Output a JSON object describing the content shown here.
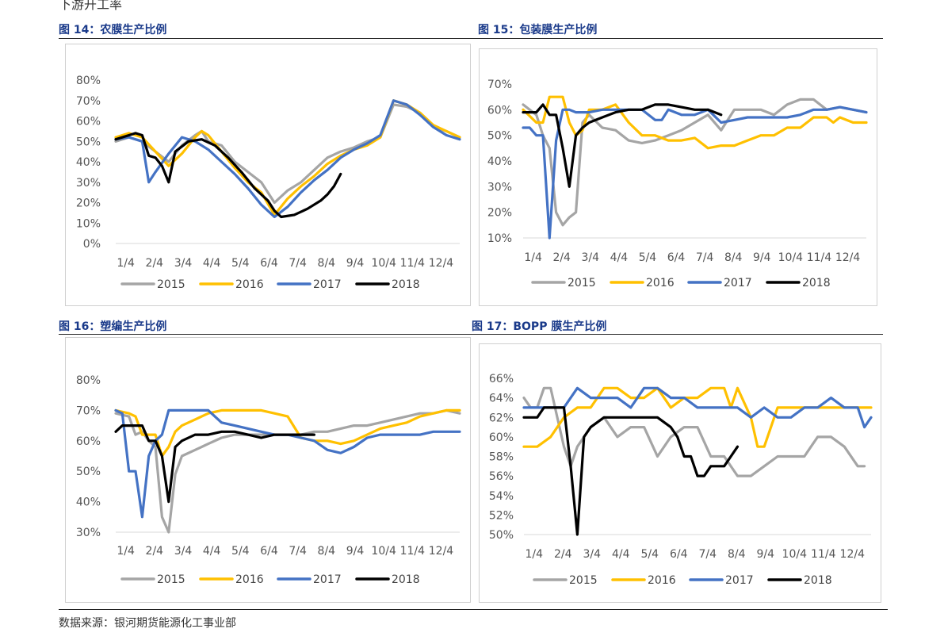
{
  "header": {
    "text": "下游开工率"
  },
  "footer": {
    "source": "数据来源：银河期货能源化工事业部"
  },
  "colors": {
    "2015": "#a5a5a5",
    "2016": "#ffc000",
    "2017": "#4472c4",
    "2018": "#000000",
    "title": "#1a3a8a"
  },
  "chart_data": [
    {
      "id": "fig14",
      "figure_label": "图 14：农膜生产比例",
      "type": "line",
      "y_unit": "%",
      "ylim": [
        0,
        80
      ],
      "yticks": [
        0,
        10,
        20,
        30,
        40,
        50,
        60,
        70,
        80
      ],
      "xlim": [
        0,
        52
      ],
      "categories": [
        "1/4",
        "2/4",
        "3/4",
        "4/4",
        "5/4",
        "6/4",
        "7/4",
        "8/4",
        "9/4",
        "10/4",
        "11/4",
        "12/4"
      ],
      "legend_position": "bottom",
      "grid": false,
      "series": [
        {
          "name": "2015",
          "x": [
            0,
            2,
            4,
            6,
            8,
            10,
            12,
            13,
            14,
            16,
            18,
            20,
            22,
            24,
            26,
            28,
            30,
            32,
            34,
            36,
            38,
            40,
            42,
            44,
            46,
            48,
            50,
            52
          ],
          "y": [
            50,
            52,
            50,
            45,
            40,
            48,
            53,
            55,
            50,
            48,
            40,
            35,
            30,
            20,
            26,
            30,
            36,
            42,
            45,
            47,
            50,
            52,
            68,
            67,
            64,
            57,
            55,
            52
          ]
        },
        {
          "name": "2016",
          "x": [
            0,
            2,
            4,
            6,
            8,
            10,
            12,
            13,
            14,
            16,
            18,
            20,
            22,
            24,
            26,
            28,
            30,
            32,
            34,
            36,
            38,
            40,
            42,
            44,
            46,
            48,
            50,
            52
          ],
          "y": [
            52,
            54,
            52,
            45,
            38,
            44,
            52,
            55,
            53,
            45,
            37,
            30,
            25,
            14,
            22,
            28,
            33,
            39,
            43,
            46,
            48,
            52,
            70,
            68,
            64,
            58,
            55,
            52
          ]
        },
        {
          "name": "2017",
          "x": [
            0,
            2,
            4,
            5,
            6,
            8,
            10,
            12,
            14,
            16,
            18,
            20,
            22,
            24,
            26,
            28,
            30,
            32,
            34,
            36,
            38,
            40,
            42,
            44,
            46,
            48,
            50,
            52
          ],
          "y": [
            51,
            52,
            50,
            30,
            35,
            44,
            52,
            50,
            46,
            40,
            34,
            27,
            19,
            13,
            18,
            25,
            31,
            36,
            42,
            46,
            49,
            53,
            70,
            68,
            63,
            57,
            53,
            51
          ]
        },
        {
          "name": "2018",
          "x": [
            0,
            2,
            3,
            4,
            5,
            6,
            7,
            8,
            9,
            11,
            13,
            15,
            17,
            19,
            21,
            23,
            24,
            25,
            27,
            29,
            31,
            32,
            33,
            34
          ],
          "y": [
            51,
            53,
            54,
            53,
            43,
            42,
            38,
            30,
            45,
            50,
            51,
            48,
            42,
            35,
            27,
            21,
            16,
            13,
            14,
            17,
            21,
            24,
            28,
            34
          ]
        }
      ]
    },
    {
      "id": "fig15",
      "figure_label": "图 15：包装膜生产比例",
      "type": "line",
      "y_unit": "%",
      "ylim": [
        10,
        70
      ],
      "yticks": [
        10,
        20,
        30,
        40,
        50,
        60,
        70
      ],
      "xlim": [
        0,
        52
      ],
      "categories": [
        "1/4",
        "2/4",
        "3/4",
        "4/4",
        "5/4",
        "6/4",
        "7/4",
        "8/4",
        "9/4",
        "10/4",
        "11/4",
        "12/4"
      ],
      "legend_position": "bottom",
      "grid": false,
      "series": [
        {
          "name": "2015",
          "x": [
            0,
            2,
            3,
            4,
            5,
            6,
            7,
            8,
            9,
            10,
            12,
            14,
            16,
            18,
            20,
            22,
            24,
            26,
            28,
            30,
            32,
            34,
            36,
            38,
            40,
            42,
            44,
            46,
            48,
            50,
            52
          ],
          "y": [
            62,
            58,
            50,
            45,
            20,
            15,
            18,
            20,
            55,
            58,
            53,
            52,
            48,
            47,
            48,
            50,
            52,
            55,
            58,
            52,
            60,
            60,
            60,
            58,
            62,
            64,
            64,
            60,
            61,
            60,
            59
          ]
        },
        {
          "name": "2016",
          "x": [
            0,
            2,
            3,
            4,
            6,
            7,
            8,
            9,
            10,
            12,
            14,
            16,
            18,
            20,
            22,
            24,
            26,
            28,
            30,
            32,
            34,
            36,
            38,
            40,
            42,
            44,
            46,
            47,
            48,
            50,
            52
          ],
          "y": [
            60,
            55,
            55,
            65,
            65,
            55,
            50,
            52,
            60,
            60,
            62,
            55,
            50,
            50,
            48,
            48,
            49,
            45,
            46,
            46,
            48,
            50,
            50,
            53,
            53,
            57,
            57,
            55,
            57,
            55,
            55
          ]
        },
        {
          "name": "2017",
          "x": [
            0,
            1,
            2,
            3,
            4,
            5,
            6,
            7,
            8,
            10,
            12,
            14,
            16,
            18,
            20,
            21,
            22,
            24,
            26,
            28,
            30,
            32,
            34,
            36,
            38,
            40,
            42,
            44,
            46,
            48,
            50,
            52
          ],
          "y": [
            53,
            53,
            50,
            50,
            10,
            48,
            60,
            60,
            59,
            59,
            60,
            60,
            60,
            60,
            56,
            56,
            60,
            58,
            58,
            60,
            55,
            56,
            57,
            57,
            57,
            57,
            58,
            60,
            60,
            61,
            60,
            59
          ]
        },
        {
          "name": "2018",
          "x": [
            0,
            1,
            2,
            3,
            4,
            5,
            6,
            7,
            8,
            9,
            10,
            12,
            14,
            16,
            18,
            20,
            22,
            24,
            26,
            28,
            30
          ],
          "y": [
            59,
            59,
            59,
            62,
            58,
            58,
            45,
            30,
            50,
            53,
            55,
            57,
            59,
            60,
            60,
            62,
            62,
            61,
            60,
            60,
            58
          ]
        }
      ]
    },
    {
      "id": "fig16",
      "figure_label": "图 16：塑编生产比例",
      "type": "line",
      "y_unit": "%",
      "ylim": [
        30,
        80
      ],
      "yticks": [
        30,
        40,
        50,
        60,
        70,
        80
      ],
      "xlim": [
        0,
        52
      ],
      "categories": [
        "1/4",
        "2/4",
        "3/4",
        "4/4",
        "5/4",
        "6/4",
        "7/4",
        "8/4",
        "9/4",
        "10/4",
        "11/4",
        "12/4"
      ],
      "legend_position": "bottom",
      "grid": false,
      "series": [
        {
          "name": "2015",
          "x": [
            0,
            2,
            3,
            4,
            5,
            6,
            7,
            8,
            9,
            10,
            12,
            14,
            16,
            18,
            20,
            22,
            24,
            26,
            28,
            30,
            32,
            34,
            36,
            38,
            40,
            42,
            44,
            46,
            48,
            50,
            52
          ],
          "y": [
            69,
            68,
            62,
            63,
            60,
            58,
            35,
            30,
            49,
            55,
            57,
            59,
            61,
            62,
            62,
            62,
            62,
            62,
            62,
            63,
            63,
            64,
            65,
            65,
            66,
            67,
            68,
            69,
            69,
            70,
            69
          ]
        },
        {
          "name": "2016",
          "x": [
            0,
            2,
            3,
            4,
            6,
            7,
            8,
            9,
            10,
            12,
            14,
            16,
            18,
            20,
            22,
            24,
            26,
            28,
            30,
            32,
            34,
            36,
            38,
            40,
            42,
            44,
            46,
            48,
            50,
            52
          ],
          "y": [
            70,
            69,
            68,
            62,
            62,
            55,
            58,
            63,
            65,
            67,
            69,
            70,
            70,
            70,
            70,
            69,
            68,
            61,
            60,
            60,
            59,
            60,
            62,
            64,
            65,
            66,
            68,
            69,
            70,
            70
          ]
        },
        {
          "name": "2017",
          "x": [
            0,
            1,
            2,
            3,
            4,
            5,
            6,
            7,
            8,
            10,
            12,
            14,
            16,
            18,
            20,
            22,
            24,
            26,
            28,
            30,
            32,
            34,
            36,
            38,
            40,
            42,
            44,
            46,
            48,
            50,
            52
          ],
          "y": [
            70,
            69,
            50,
            50,
            35,
            55,
            60,
            62,
            70,
            70,
            70,
            70,
            66,
            65,
            64,
            63,
            62,
            62,
            61,
            60,
            57,
            56,
            58,
            61,
            62,
            62,
            62,
            62,
            63,
            63,
            63
          ]
        },
        {
          "name": "2018",
          "x": [
            0,
            1,
            2,
            3,
            4,
            5,
            6,
            7,
            8,
            9,
            10,
            12,
            14,
            16,
            18,
            20,
            22,
            24,
            26,
            28,
            30
          ],
          "y": [
            63,
            65,
            65,
            65,
            65,
            60,
            60,
            55,
            40,
            58,
            60,
            62,
            62,
            63,
            63,
            62,
            61,
            62,
            62,
            62,
            62
          ]
        }
      ]
    },
    {
      "id": "fig17",
      "figure_label": "图 17：BOPP 膜生产比例",
      "type": "line",
      "y_unit": "%",
      "ylim": [
        50,
        66
      ],
      "yticks": [
        50,
        52,
        54,
        56,
        58,
        60,
        62,
        64,
        66
      ],
      "xlim": [
        0,
        52
      ],
      "categories": [
        "1/4",
        "2/4",
        "3/4",
        "4/4",
        "5/4",
        "6/4",
        "7/4",
        "8/4",
        "9/4",
        "10/4",
        "11/4",
        "12/4"
      ],
      "legend_position": "bottom",
      "grid": false,
      "series": [
        {
          "name": "2015",
          "x": [
            0,
            1,
            2,
            3,
            4,
            5,
            6,
            7,
            8,
            10,
            12,
            14,
            16,
            18,
            20,
            22,
            24,
            26,
            28,
            30,
            32,
            34,
            36,
            38,
            40,
            42,
            44,
            46,
            48,
            50,
            51
          ],
          "y": [
            64,
            63,
            63,
            65,
            65,
            62,
            59,
            57,
            59,
            61,
            62,
            60,
            61,
            61,
            58,
            60,
            61,
            61,
            58,
            58,
            56,
            56,
            57,
            58,
            58,
            58,
            60,
            60,
            59,
            57,
            57
          ]
        },
        {
          "name": "2016",
          "x": [
            0,
            2,
            4,
            6,
            8,
            10,
            12,
            14,
            16,
            18,
            20,
            22,
            24,
            26,
            28,
            30,
            31,
            32,
            34,
            35,
            36,
            38,
            40,
            42,
            44,
            46,
            48,
            50,
            52
          ],
          "y": [
            59,
            59,
            60,
            62,
            63,
            63,
            65,
            65,
            64,
            64,
            65,
            63,
            64,
            64,
            65,
            65,
            63,
            65,
            62,
            59,
            59,
            63,
            63,
            63,
            63,
            63,
            63,
            63,
            63
          ]
        },
        {
          "name": "2017",
          "x": [
            0,
            2,
            4,
            6,
            8,
            10,
            12,
            14,
            16,
            18,
            20,
            22,
            24,
            26,
            28,
            30,
            32,
            34,
            36,
            38,
            40,
            42,
            44,
            46,
            48,
            50,
            51,
            52
          ],
          "y": [
            63,
            63,
            63,
            63,
            65,
            64,
            64,
            64,
            63,
            65,
            65,
            64,
            64,
            63,
            63,
            63,
            63,
            62,
            63,
            62,
            62,
            63,
            63,
            64,
            63,
            63,
            61,
            62
          ]
        },
        {
          "name": "2018",
          "x": [
            0,
            1,
            2,
            3,
            4,
            5,
            6,
            7,
            8,
            9,
            10,
            12,
            14,
            16,
            18,
            20,
            22,
            23,
            24,
            25,
            26,
            27,
            28,
            29,
            30,
            31,
            32
          ],
          "y": [
            62,
            62,
            62,
            63,
            63,
            63,
            63,
            57,
            50,
            60,
            61,
            62,
            62,
            62,
            62,
            62,
            61,
            60,
            58,
            58,
            56,
            56,
            57,
            57,
            57,
            58,
            59
          ]
        }
      ]
    }
  ]
}
